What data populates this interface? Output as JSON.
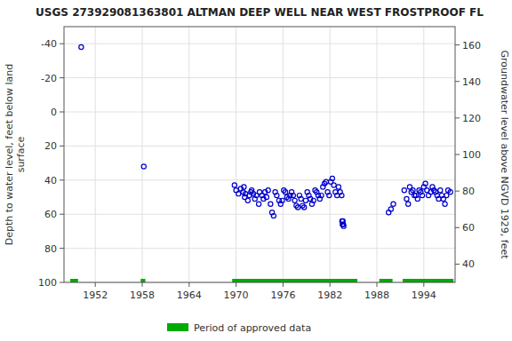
{
  "chart_data": {
    "type": "scatter",
    "title": "USGS 273929081363801 ALTMAN DEEP WELL NEAR WEST FROSTPROOF FL",
    "ylabel": "Depth to water level, feet below land\nsurface",
    "y2label": "Groundwater level above NGVD 1929, feet",
    "xlim": [
      1948,
      1998
    ],
    "xticks": [
      1952,
      1958,
      1964,
      1970,
      1976,
      1982,
      1988,
      1994
    ],
    "ylim": [
      100,
      -50
    ],
    "yticks": [
      -40,
      -20,
      0,
      20,
      40,
      60,
      80,
      100
    ],
    "y2lim": [
      30,
      170
    ],
    "y2ticks": [
      40,
      60,
      80,
      100,
      120,
      140,
      160
    ],
    "grid": true,
    "legend": "bottom",
    "series": [
      {
        "color": "#0000cc",
        "marker": "circle",
        "x": [
          1950.2,
          1958.2,
          1969.8,
          1970.0,
          1970.3,
          1970.6,
          1970.9,
          1971.0,
          1971.1,
          1971.2,
          1971.5,
          1971.7,
          1971.9,
          1972.0,
          1972.2,
          1972.4,
          1972.6,
          1972.9,
          1973.0,
          1973.3,
          1973.5,
          1973.7,
          1973.9,
          1974.1,
          1974.4,
          1974.6,
          1974.8,
          1975.0,
          1975.2,
          1975.5,
          1975.7,
          1975.9,
          1976.1,
          1976.3,
          1976.5,
          1976.7,
          1976.9,
          1977.1,
          1977.3,
          1977.5,
          1977.7,
          1977.9,
          1978.1,
          1978.3,
          1978.5,
          1978.7,
          1978.9,
          1979.1,
          1979.3,
          1979.5,
          1979.7,
          1979.9,
          1980.1,
          1980.3,
          1980.5,
          1980.7,
          1980.9,
          1981.1,
          1981.3,
          1981.5,
          1981.7,
          1981.9,
          1982.1,
          1982.3,
          1982.5,
          1982.7,
          1982.9,
          1983.1,
          1983.3,
          1983.5,
          1983.55,
          1983.6,
          1983.65,
          1983.7,
          1983.75,
          1989.5,
          1989.8,
          1990.1,
          1991.5,
          1991.8,
          1992.0,
          1992.2,
          1992.4,
          1992.6,
          1992.8,
          1993.0,
          1993.2,
          1993.4,
          1993.6,
          1993.8,
          1994.0,
          1994.2,
          1994.4,
          1994.6,
          1994.9,
          1995.1,
          1995.3,
          1995.5,
          1995.7,
          1995.9,
          1996.1,
          1996.3,
          1996.5,
          1996.7,
          1996.9,
          1997.1,
          1997.4
        ],
        "values": [
          -38,
          32,
          43,
          46,
          48,
          45,
          47,
          44,
          50,
          48,
          52,
          49,
          47,
          46,
          48,
          51,
          49,
          54,
          47,
          49,
          51,
          47,
          50,
          46,
          54,
          59,
          61,
          47,
          49,
          52,
          54,
          52,
          46,
          47,
          50,
          51,
          49,
          47,
          49,
          52,
          55,
          56,
          49,
          51,
          55,
          56,
          52,
          47,
          49,
          51,
          54,
          52,
          46,
          47,
          49,
          51,
          49,
          44,
          42,
          41,
          47,
          49,
          41,
          39,
          43,
          47,
          49,
          44,
          47,
          49,
          64,
          66,
          64,
          66,
          67,
          59,
          57,
          54,
          46,
          51,
          54,
          44,
          47,
          46,
          49,
          49,
          51,
          46,
          47,
          49,
          44,
          42,
          46,
          49,
          47,
          44,
          46,
          47,
          49,
          51,
          46,
          49,
          51,
          54,
          49,
          46,
          47
        ]
      },
      {
        "name": "Period of approved data",
        "type": "segment",
        "color": "#00aa00",
        "x_ranges": [
          [
            1948.8,
            1949.8
          ],
          [
            1957.8,
            1958.4
          ],
          [
            1969.5,
            1985.5
          ],
          [
            1988.3,
            1990.0
          ],
          [
            1991.3,
            1997.8
          ]
        ],
        "values": [
          100,
          100,
          100,
          100,
          100
        ]
      }
    ]
  }
}
